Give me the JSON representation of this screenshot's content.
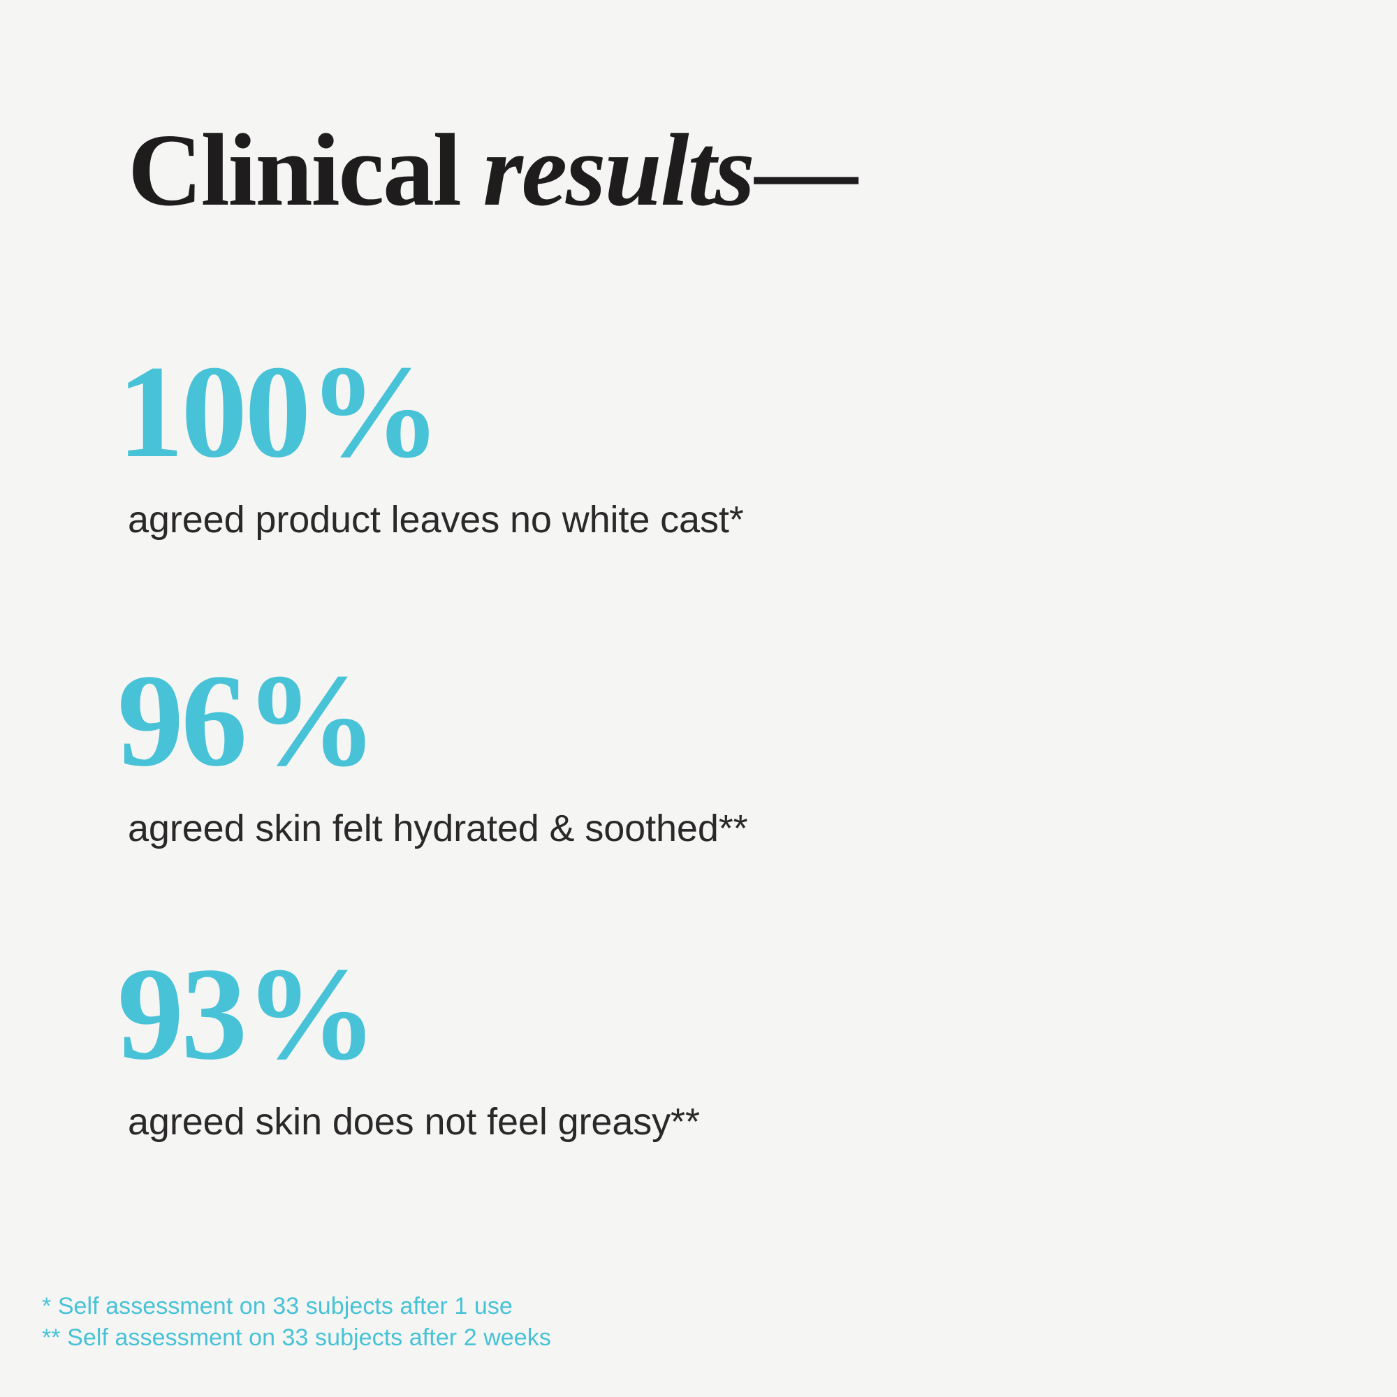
{
  "colors": {
    "background": "#f5f5f4",
    "heading_ink": "#1e1c1d",
    "body_text": "#2a2829",
    "accent_teal": "#47c2d6"
  },
  "heading": {
    "word_regular": "Clinical",
    "word_italic": "results",
    "dash": "—"
  },
  "stats": [
    {
      "value": "100%",
      "caption": "agreed product leaves no white cast*"
    },
    {
      "value": "96%",
      "caption": "agreed skin felt hydrated & soothed**"
    },
    {
      "value": "93%",
      "caption": "agreed skin does not feel greasy**"
    }
  ],
  "footnotes": [
    {
      "text": "* Self assessment on 33 subjects after 1 use"
    },
    {
      "text": "** Self assessment on 33 subjects after 2 weeks"
    }
  ]
}
